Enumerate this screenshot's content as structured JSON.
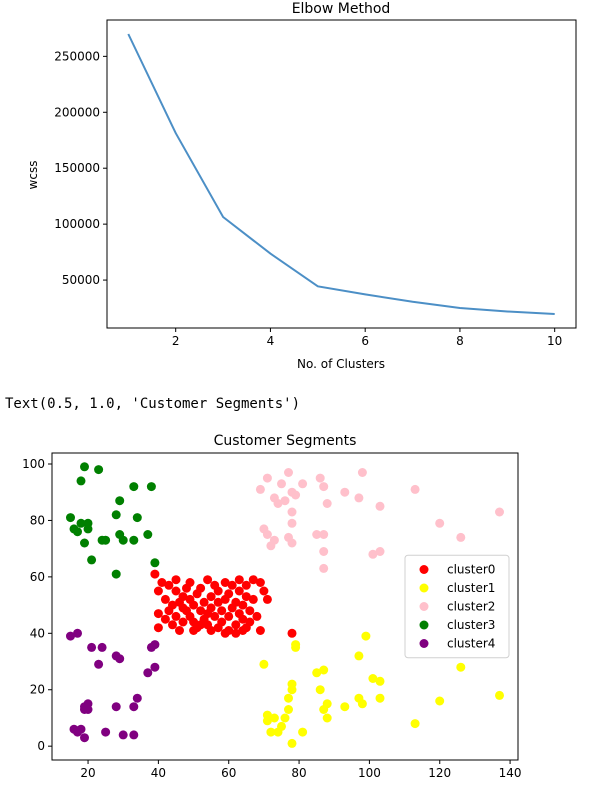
{
  "output_line": "Text(0.5, 1.0, 'Customer Segments')",
  "chart_data": [
    {
      "type": "line",
      "title": "Elbow Method",
      "xlabel": "No. of Clusters",
      "ylabel": "wcss",
      "x": [
        1,
        2,
        3,
        4,
        5,
        6,
        7,
        8,
        9,
        10
      ],
      "series": [
        {
          "values": [
            269981,
            181363,
            106349,
            73679,
            44448,
            37233,
            30566,
            25050,
            21863,
            19672
          ],
          "color": "#4c8fc6"
        }
      ],
      "xlim": [
        0.55,
        10.45
      ],
      "ylim": [
        7156,
        282497
      ],
      "xticks": [
        2,
        4,
        6,
        8,
        10
      ],
      "xtick_labels": [
        "2",
        "4",
        "6",
        "8",
        "10"
      ],
      "yticks": [
        50000,
        100000,
        150000,
        200000,
        250000
      ],
      "ytick_labels": [
        "50000",
        "100000",
        "150000",
        "200000",
        "250000"
      ],
      "grid": false
    },
    {
      "type": "scatter",
      "title": "Customer Segments",
      "xlabel": "",
      "ylabel": "",
      "xlim": [
        9.75,
        142.25
      ],
      "ylim": [
        -4.9,
        103.9
      ],
      "xticks": [
        20,
        40,
        60,
        80,
        100,
        120,
        140
      ],
      "xtick_labels": [
        "20",
        "40",
        "60",
        "80",
        "100",
        "120",
        "140"
      ],
      "yticks": [
        0,
        20,
        40,
        60,
        80,
        100
      ],
      "ytick_labels": [
        "0",
        "20",
        "40",
        "60",
        "80",
        "100"
      ],
      "grid": false,
      "legend_position": "center-right",
      "series": [
        {
          "name": "cluster0",
          "color": "#ff0000",
          "points": [
            [
              39,
              61
            ],
            [
              40,
              55
            ],
            [
              40,
              47
            ],
            [
              40,
              42
            ],
            [
              41,
              58
            ],
            [
              42,
              52
            ],
            [
              42,
              45
            ],
            [
              43,
              48
            ],
            [
              43,
              57
            ],
            [
              44,
              50
            ],
            [
              44,
              43
            ],
            [
              45,
              59
            ],
            [
              45,
              55
            ],
            [
              45,
              46
            ],
            [
              46,
              51
            ],
            [
              46,
              41
            ],
            [
              47,
              53
            ],
            [
              47,
              49
            ],
            [
              47,
              44
            ],
            [
              48,
              56
            ],
            [
              48,
              48
            ],
            [
              49,
              52
            ],
            [
              49,
              46
            ],
            [
              49,
              58
            ],
            [
              50,
              50
            ],
            [
              50,
              44
            ],
            [
              51,
              54
            ],
            [
              51,
              42
            ],
            [
              52,
              48
            ],
            [
              52,
              56
            ],
            [
              53,
              51
            ],
            [
              53,
              45
            ],
            [
              54,
              59
            ],
            [
              54,
              47
            ],
            [
              54,
              43
            ],
            [
              55,
              53
            ],
            [
              55,
              49
            ],
            [
              56,
              57
            ],
            [
              56,
              46
            ],
            [
              57,
              51
            ],
            [
              57,
              42
            ],
            [
              57,
              55
            ],
            [
              58,
              48
            ],
            [
              58,
              44
            ],
            [
              59,
              58
            ],
            [
              59,
              52
            ],
            [
              60,
              46
            ],
            [
              60,
              54
            ],
            [
              60,
              41
            ],
            [
              61,
              49
            ],
            [
              61,
              57
            ],
            [
              62,
              43
            ],
            [
              62,
              51
            ],
            [
              63,
              47
            ],
            [
              63,
              55
            ],
            [
              63,
              59
            ],
            [
              64,
              45
            ],
            [
              64,
              50
            ],
            [
              65,
              42
            ],
            [
              65,
              53
            ],
            [
              65,
              57
            ],
            [
              66,
              48
            ],
            [
              66,
              44
            ],
            [
              67,
              52
            ],
            [
              67,
              59
            ],
            [
              68,
              46
            ],
            [
              69,
              58
            ],
            [
              69,
              41
            ],
            [
              70,
              55
            ],
            [
              71,
              52
            ],
            [
              78,
              40
            ],
            [
              50,
              41
            ],
            [
              52,
              43
            ],
            [
              55,
              41
            ],
            [
              59,
              40
            ],
            [
              62,
              40
            ],
            [
              64,
              41
            ]
          ]
        },
        {
          "name": "cluster1",
          "color": "#ffff00",
          "points": [
            [
              70,
              29
            ],
            [
              71,
              11
            ],
            [
              71,
              9
            ],
            [
              72,
              5
            ],
            [
              73,
              10
            ],
            [
              74,
              5
            ],
            [
              75,
              7
            ],
            [
              76,
              10
            ],
            [
              77,
              13
            ],
            [
              77,
              17
            ],
            [
              78,
              20
            ],
            [
              78,
              22
            ],
            [
              78,
              1
            ],
            [
              79,
              35
            ],
            [
              79,
              36
            ],
            [
              81,
              5
            ],
            [
              85,
              26
            ],
            [
              86,
              20
            ],
            [
              87,
              27
            ],
            [
              87,
              13
            ],
            [
              88,
              10
            ],
            [
              88,
              15
            ],
            [
              93,
              14
            ],
            [
              97,
              17
            ],
            [
              97,
              32
            ],
            [
              98,
              15
            ],
            [
              99,
              39
            ],
            [
              101,
              24
            ],
            [
              103,
              23
            ],
            [
              103,
              17
            ],
            [
              113,
              8
            ],
            [
              120,
              16
            ],
            [
              126,
              28
            ],
            [
              137,
              18
            ]
          ]
        },
        {
          "name": "cluster2",
          "color": "#ffc0cb",
          "points": [
            [
              69,
              91
            ],
            [
              70,
              77
            ],
            [
              71,
              75
            ],
            [
              71,
              95
            ],
            [
              72,
              71
            ],
            [
              73,
              88
            ],
            [
              73,
              73
            ],
            [
              74,
              86
            ],
            [
              75,
              93
            ],
            [
              76,
              87
            ],
            [
              77,
              97
            ],
            [
              77,
              74
            ],
            [
              78,
              72
            ],
            [
              78,
              79
            ],
            [
              78,
              83
            ],
            [
              78,
              90
            ],
            [
              79,
              89
            ],
            [
              81,
              93
            ],
            [
              85,
              75
            ],
            [
              86,
              95
            ],
            [
              87,
              63
            ],
            [
              87,
              75
            ],
            [
              87,
              69
            ],
            [
              87,
              92
            ],
            [
              88,
              86
            ],
            [
              93,
              90
            ],
            [
              97,
              88
            ],
            [
              98,
              97
            ],
            [
              101,
              68
            ],
            [
              103,
              69
            ],
            [
              103,
              85
            ],
            [
              113,
              91
            ],
            [
              120,
              79
            ],
            [
              126,
              74
            ],
            [
              137,
              83
            ]
          ]
        },
        {
          "name": "cluster3",
          "color": "#008000",
          "points": [
            [
              15,
              81
            ],
            [
              16,
              77
            ],
            [
              17,
              76
            ],
            [
              18,
              94
            ],
            [
              18,
              79
            ],
            [
              19,
              99
            ],
            [
              19,
              72
            ],
            [
              20,
              77
            ],
            [
              20,
              79
            ],
            [
              21,
              66
            ],
            [
              23,
              98
            ],
            [
              24,
              73
            ],
            [
              25,
              73
            ],
            [
              28,
              82
            ],
            [
              28,
              61
            ],
            [
              29,
              87
            ],
            [
              29,
              75
            ],
            [
              30,
              73
            ],
            [
              33,
              92
            ],
            [
              33,
              73
            ],
            [
              34,
              81
            ],
            [
              37,
              75
            ],
            [
              38,
              92
            ],
            [
              39,
              65
            ]
          ]
        },
        {
          "name": "cluster4",
          "color": "#800080",
          "points": [
            [
              15,
              39
            ],
            [
              16,
              6
            ],
            [
              17,
              40
            ],
            [
              17,
              5
            ],
            [
              18,
              6
            ],
            [
              19,
              3
            ],
            [
              19,
              14
            ],
            [
              19,
              13
            ],
            [
              20,
              15
            ],
            [
              20,
              13
            ],
            [
              21,
              35
            ],
            [
              23,
              29
            ],
            [
              24,
              35
            ],
            [
              25,
              5
            ],
            [
              28,
              14
            ],
            [
              28,
              32
            ],
            [
              29,
              31
            ],
            [
              30,
              4
            ],
            [
              33,
              4
            ],
            [
              33,
              14
            ],
            [
              34,
              17
            ],
            [
              37,
              26
            ],
            [
              38,
              35
            ],
            [
              39,
              36
            ],
            [
              39,
              28
            ]
          ]
        }
      ]
    }
  ]
}
